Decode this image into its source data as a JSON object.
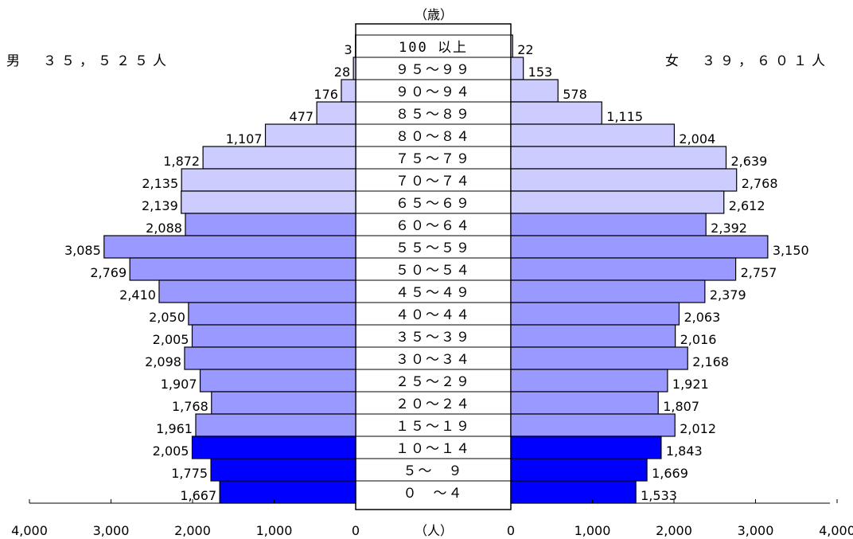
{
  "chart_data": {
    "type": "bar",
    "axis_unit_label": "（人）",
    "age_axis_label": "（歳）",
    "male_title": "男　３５，５２５人",
    "female_title": "女　３９，６０１人",
    "age_groups": [
      "100 以上",
      "９５～９９",
      "９０～９４",
      "８５～８９",
      "８０～８４",
      "７５～７９",
      "７０～７４",
      "６５～６９",
      "６０～６４",
      "５５～５９",
      "５０～５４",
      "４５～４９",
      "４０～４４",
      "３５～３９",
      "３０～３４",
      "２５～２９",
      "２０～２４",
      "１５～１９",
      "１０～１４",
      "５～　９",
      "０　～４"
    ],
    "series": [
      {
        "name": "男",
        "values": [
          3,
          28,
          176,
          477,
          1107,
          1872,
          2135,
          2139,
          2088,
          3085,
          2769,
          2410,
          2050,
          2005,
          2098,
          1907,
          1768,
          1961,
          2005,
          1775,
          1667
        ],
        "value_labels": [
          "3",
          "28",
          "176",
          "477",
          "1,107",
          "1,872",
          "2,135",
          "2,139",
          "2,088",
          "3,085",
          "2,769",
          "2,410",
          "2,050",
          "2,005",
          "2,098",
          "1,907",
          "1,768",
          "1,961",
          "2,005",
          "1,775",
          "1,667"
        ]
      },
      {
        "name": "女",
        "values": [
          22,
          153,
          578,
          1115,
          2004,
          2639,
          2768,
          2612,
          2392,
          3150,
          2757,
          2379,
          2063,
          2016,
          2168,
          1921,
          1807,
          2012,
          1843,
          1669,
          1533
        ],
        "value_labels": [
          "22",
          "153",
          "578",
          "1,115",
          "2,004",
          "2,639",
          "2,768",
          "2,612",
          "2,392",
          "3,150",
          "2,757",
          "2,379",
          "2,063",
          "2,016",
          "2,168",
          "1,921",
          "1,807",
          "2,012",
          "1,843",
          "1,669",
          "1,533"
        ]
      }
    ],
    "x_ticks": [
      4000,
      3000,
      2000,
      1000,
      0
    ],
    "x_tick_labels_left": [
      "4,000",
      "3,000",
      "2,000",
      "1,000",
      "0"
    ],
    "x_tick_labels_right": [
      "0",
      "1,000",
      "2,000",
      "3,000",
      "4,000"
    ],
    "xlim": [
      0,
      4000
    ],
    "colors": {
      "age_65_plus": "#ccccff",
      "age_15_64": "#9999ff",
      "age_0_14": "#0000ff",
      "edge": "#000000"
    },
    "grid": false
  }
}
